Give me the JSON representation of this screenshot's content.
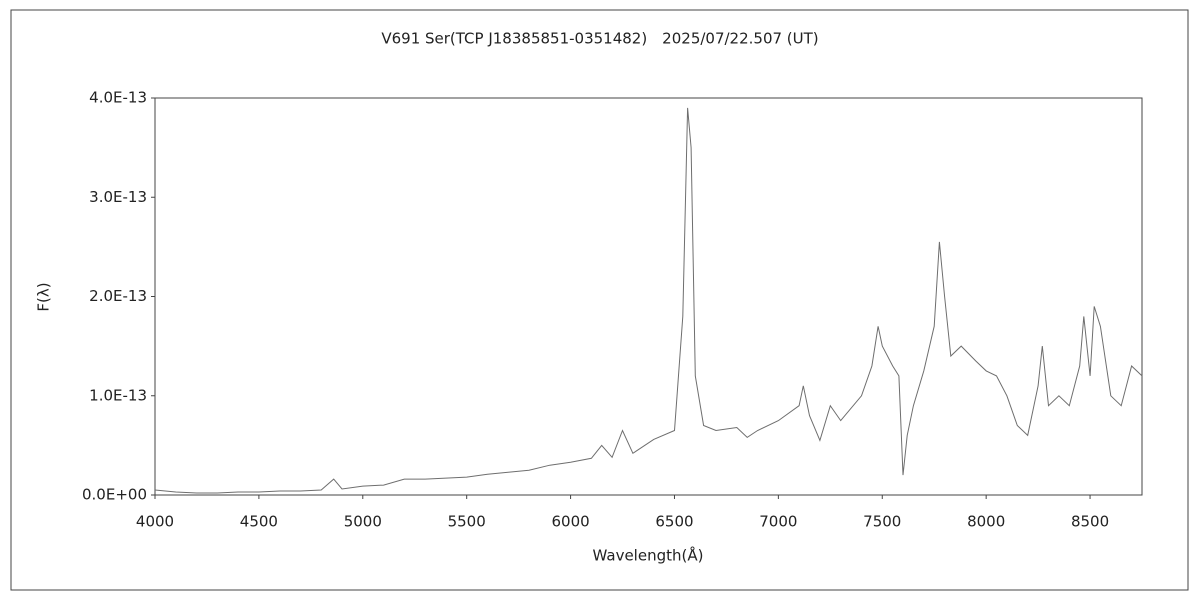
{
  "chart_data": {
    "type": "line",
    "title": "V691 Ser(TCP J18385851-0351482)　2025/07/22.507 (UT)",
    "x_label": "Wavelength(Å)",
    "y_label": "F(λ)",
    "x": [
      4000,
      4100,
      4200,
      4300,
      4400,
      4500,
      4600,
      4700,
      4800,
      4860,
      4900,
      5000,
      5100,
      5200,
      5300,
      5400,
      5500,
      5600,
      5700,
      5800,
      5900,
      6000,
      6100,
      6150,
      6200,
      6250,
      6300,
      6400,
      6500,
      6540,
      6563,
      6580,
      6600,
      6640,
      6700,
      6800,
      6850,
      6900,
      7000,
      7100,
      7120,
      7150,
      7200,
      7250,
      7300,
      7400,
      7450,
      7480,
      7500,
      7550,
      7580,
      7600,
      7620,
      7650,
      7700,
      7750,
      7775,
      7800,
      7830,
      7880,
      7950,
      8000,
      8050,
      8100,
      8150,
      8200,
      8250,
      8270,
      8300,
      8350,
      8400,
      8450,
      8470,
      8500,
      8520,
      8550,
      8600,
      8650,
      8700,
      8750
    ],
    "series": [
      {
        "color": "#6e6e6e",
        "values": [
          5e-15,
          3e-15,
          2e-15,
          2e-15,
          3e-15,
          3e-15,
          4e-15,
          4e-15,
          5e-15,
          1.6e-14,
          6e-15,
          9e-15,
          1e-14,
          1.6e-14,
          1.6e-14,
          1.7e-14,
          1.8e-14,
          2.1e-14,
          2.3e-14,
          2.5e-14,
          3e-14,
          3.3e-14,
          3.7e-14,
          5e-14,
          3.8e-14,
          6.5e-14,
          4.2e-14,
          5.6e-14,
          6.5e-14,
          1.8e-13,
          3.9e-13,
          3.5e-13,
          1.2e-13,
          7e-14,
          6.5e-14,
          6.8e-14,
          5.8e-14,
          6.5e-14,
          7.5e-14,
          9e-14,
          1.1e-13,
          8e-14,
          5.5e-14,
          9e-14,
          7.5e-14,
          1e-13,
          1.3e-13,
          1.7e-13,
          1.5e-13,
          1.3e-13,
          1.2e-13,
          2e-14,
          6e-14,
          9e-14,
          1.25e-13,
          1.7e-13,
          2.55e-13,
          2e-13,
          1.4e-13,
          1.5e-13,
          1.35e-13,
          1.25e-13,
          1.2e-13,
          1e-13,
          7e-14,
          6e-14,
          1.1e-13,
          1.5e-13,
          9e-14,
          1e-13,
          9e-14,
          1.3e-13,
          1.8e-13,
          1.2e-13,
          1.9e-13,
          1.7e-13,
          1e-13,
          9e-14,
          1.3e-13,
          1.2e-13
        ]
      }
    ],
    "xlim": [
      4000,
      8750
    ],
    "xticks": [
      4000,
      4500,
      5000,
      5500,
      6000,
      6500,
      7000,
      7500,
      8000,
      8500
    ],
    "ylim": [
      0,
      4e-13
    ],
    "yticks": [
      {
        "value": 0,
        "label": "0.0E+00"
      },
      {
        "value": 1e-13,
        "label": "1.0E-13"
      },
      {
        "value": 2e-13,
        "label": "2.0E-13"
      },
      {
        "value": 3e-13,
        "label": "3.0E-13"
      },
      {
        "value": 4e-13,
        "label": "4.0E-13"
      }
    ]
  }
}
